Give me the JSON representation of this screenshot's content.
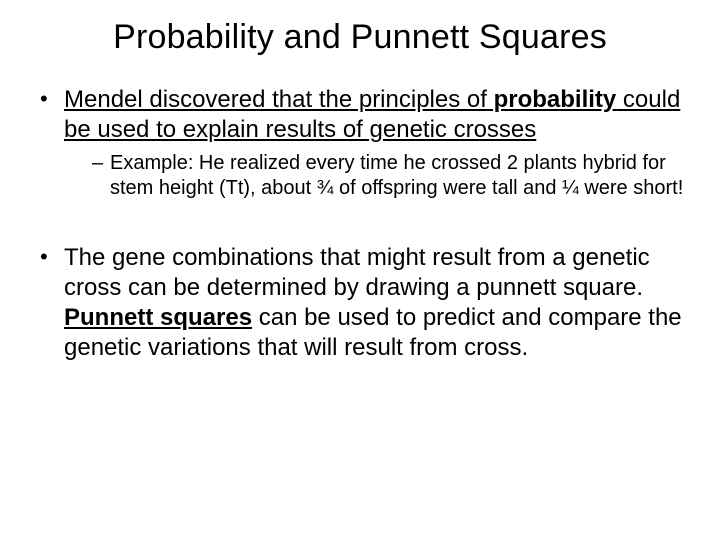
{
  "title": "Probability and Punnett Squares",
  "bullets": {
    "b1": {
      "pre": "Mendel discovered that the principles of",
      "kw": " probability",
      "post": " could be used to explain results of genetic crosses",
      "sub": "Example: He realized every time he crossed 2 plants hybrid for stem height (Tt), about ¾ of offspring were tall and ¼ were short!"
    },
    "b2": {
      "pre": "The gene combinations that might result from a genetic cross can be determined by drawing a punnett square.  ",
      "kw": "Punnett squares",
      "post": " can be used to predict and compare the genetic variations that will result from cross."
    }
  },
  "style": {
    "title_fontsize": 34,
    "body_fontsize": 24,
    "sub_fontsize": 20,
    "text_color": "#000000",
    "background_color": "#ffffff",
    "font_family": "Arial"
  }
}
